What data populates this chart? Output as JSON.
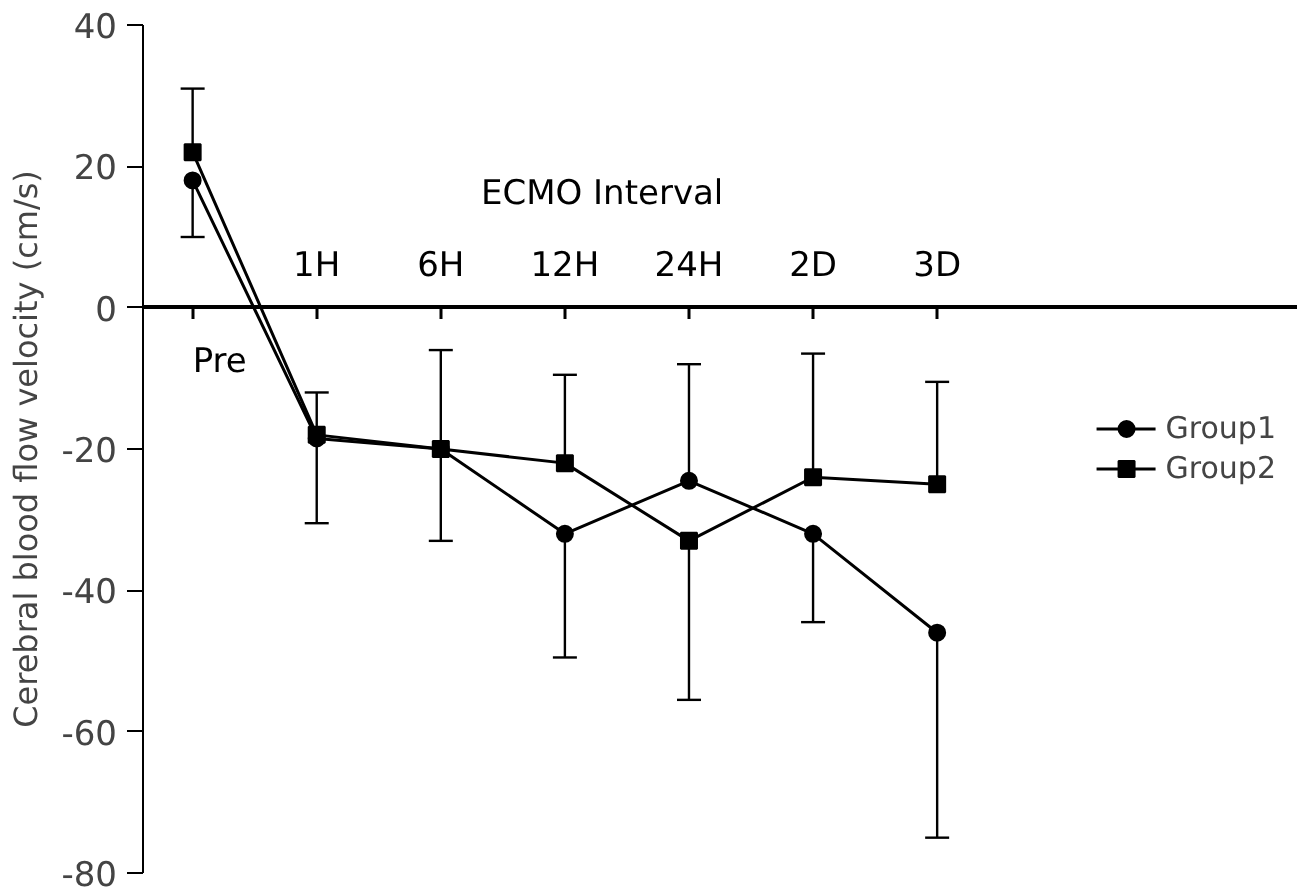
{
  "chart_data": {
    "type": "line",
    "xlabel": "ECMO Interval",
    "ylabel": "Cerebral blood flow velocity (cm/s)",
    "categories": [
      "Pre",
      "1H",
      "6H",
      "12H",
      "24H",
      "2D",
      "3D"
    ],
    "series": [
      {
        "name": "Group1",
        "color": "#000000",
        "marker": "circle",
        "values": [
          18,
          -18.5,
          -20,
          -32,
          -24.5,
          -32,
          -46
        ],
        "errors": [
          [
            10,
            18
          ],
          [
            -30.5,
            -18.5
          ],
          [
            -33,
            -20
          ],
          [
            -49.5,
            -32
          ],
          [
            -24.5,
            -8
          ],
          [
            -44.5,
            -32
          ],
          [
            -75,
            -46
          ]
        ]
      },
      {
        "name": "Group2",
        "color": "#000000",
        "marker": "square",
        "values": [
          22,
          -18,
          -20,
          -22,
          -33,
          -24,
          -25
        ],
        "errors": [
          [
            22,
            31
          ],
          [
            -18,
            -12
          ],
          [
            -20,
            -6
          ],
          [
            -22,
            -9.5
          ],
          [
            -55.5,
            -33
          ],
          [
            -24,
            -6.5
          ],
          [
            -25,
            -10.5
          ]
        ]
      }
    ],
    "ylim": [
      -80,
      40
    ],
    "yticks": [
      -80,
      -60,
      -40,
      -20,
      0,
      20,
      40
    ],
    "grid": false,
    "legend": "right"
  }
}
